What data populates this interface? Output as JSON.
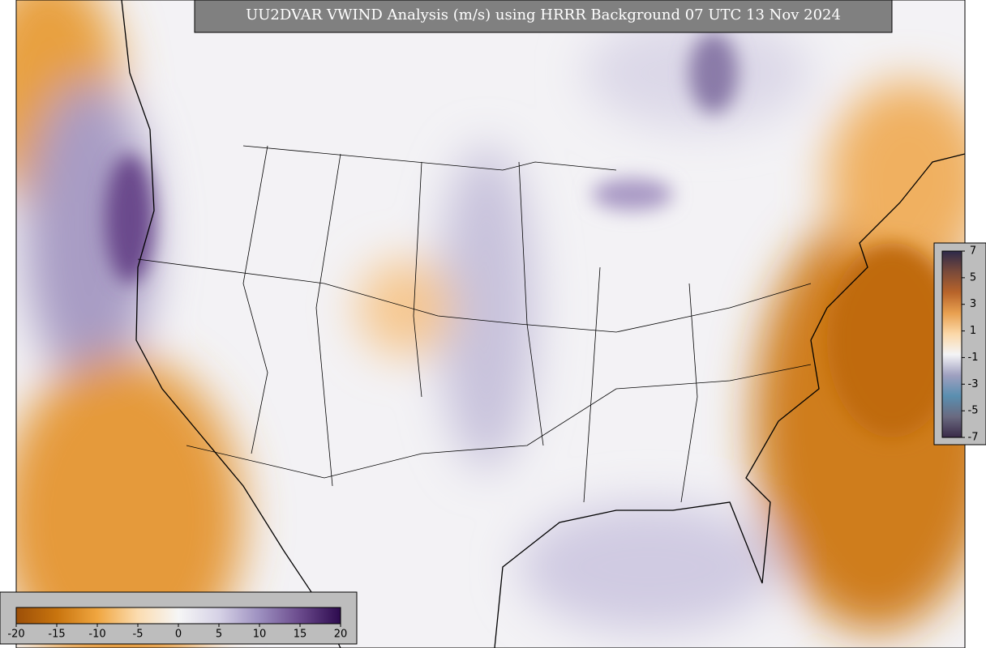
{
  "title": "UU2DVAR VWIND Analysis (m/s) using HRRR Background 07 UTC 13 Nov 2024",
  "colorbars": [
    {
      "orientation": "horizontal",
      "lim": [
        -20,
        20
      ],
      "ticks": [
        -20,
        -15,
        -10,
        -5,
        0,
        5,
        10,
        15,
        20
      ],
      "colors": [
        "#9c4f08",
        "#c8740e",
        "#f0a640",
        "#fbdcb0",
        "#f6f6f6",
        "#d6d2e6",
        "#9d90c0",
        "#6a4a8c",
        "#2d0a4e"
      ]
    },
    {
      "orientation": "vertical",
      "lim": [
        -7,
        7
      ],
      "ticks": [
        7,
        5,
        3,
        1,
        -1,
        -3,
        -5,
        -7
      ],
      "colors": [
        "#3a2a48",
        "#6a6a80",
        "#5a8fb0",
        "#9fa0c0",
        "#f4f4f6",
        "#fbd8a8",
        "#e8a050",
        "#b8642a",
        "#7a4a3a",
        "#2e2a4a"
      ]
    }
  ]
}
